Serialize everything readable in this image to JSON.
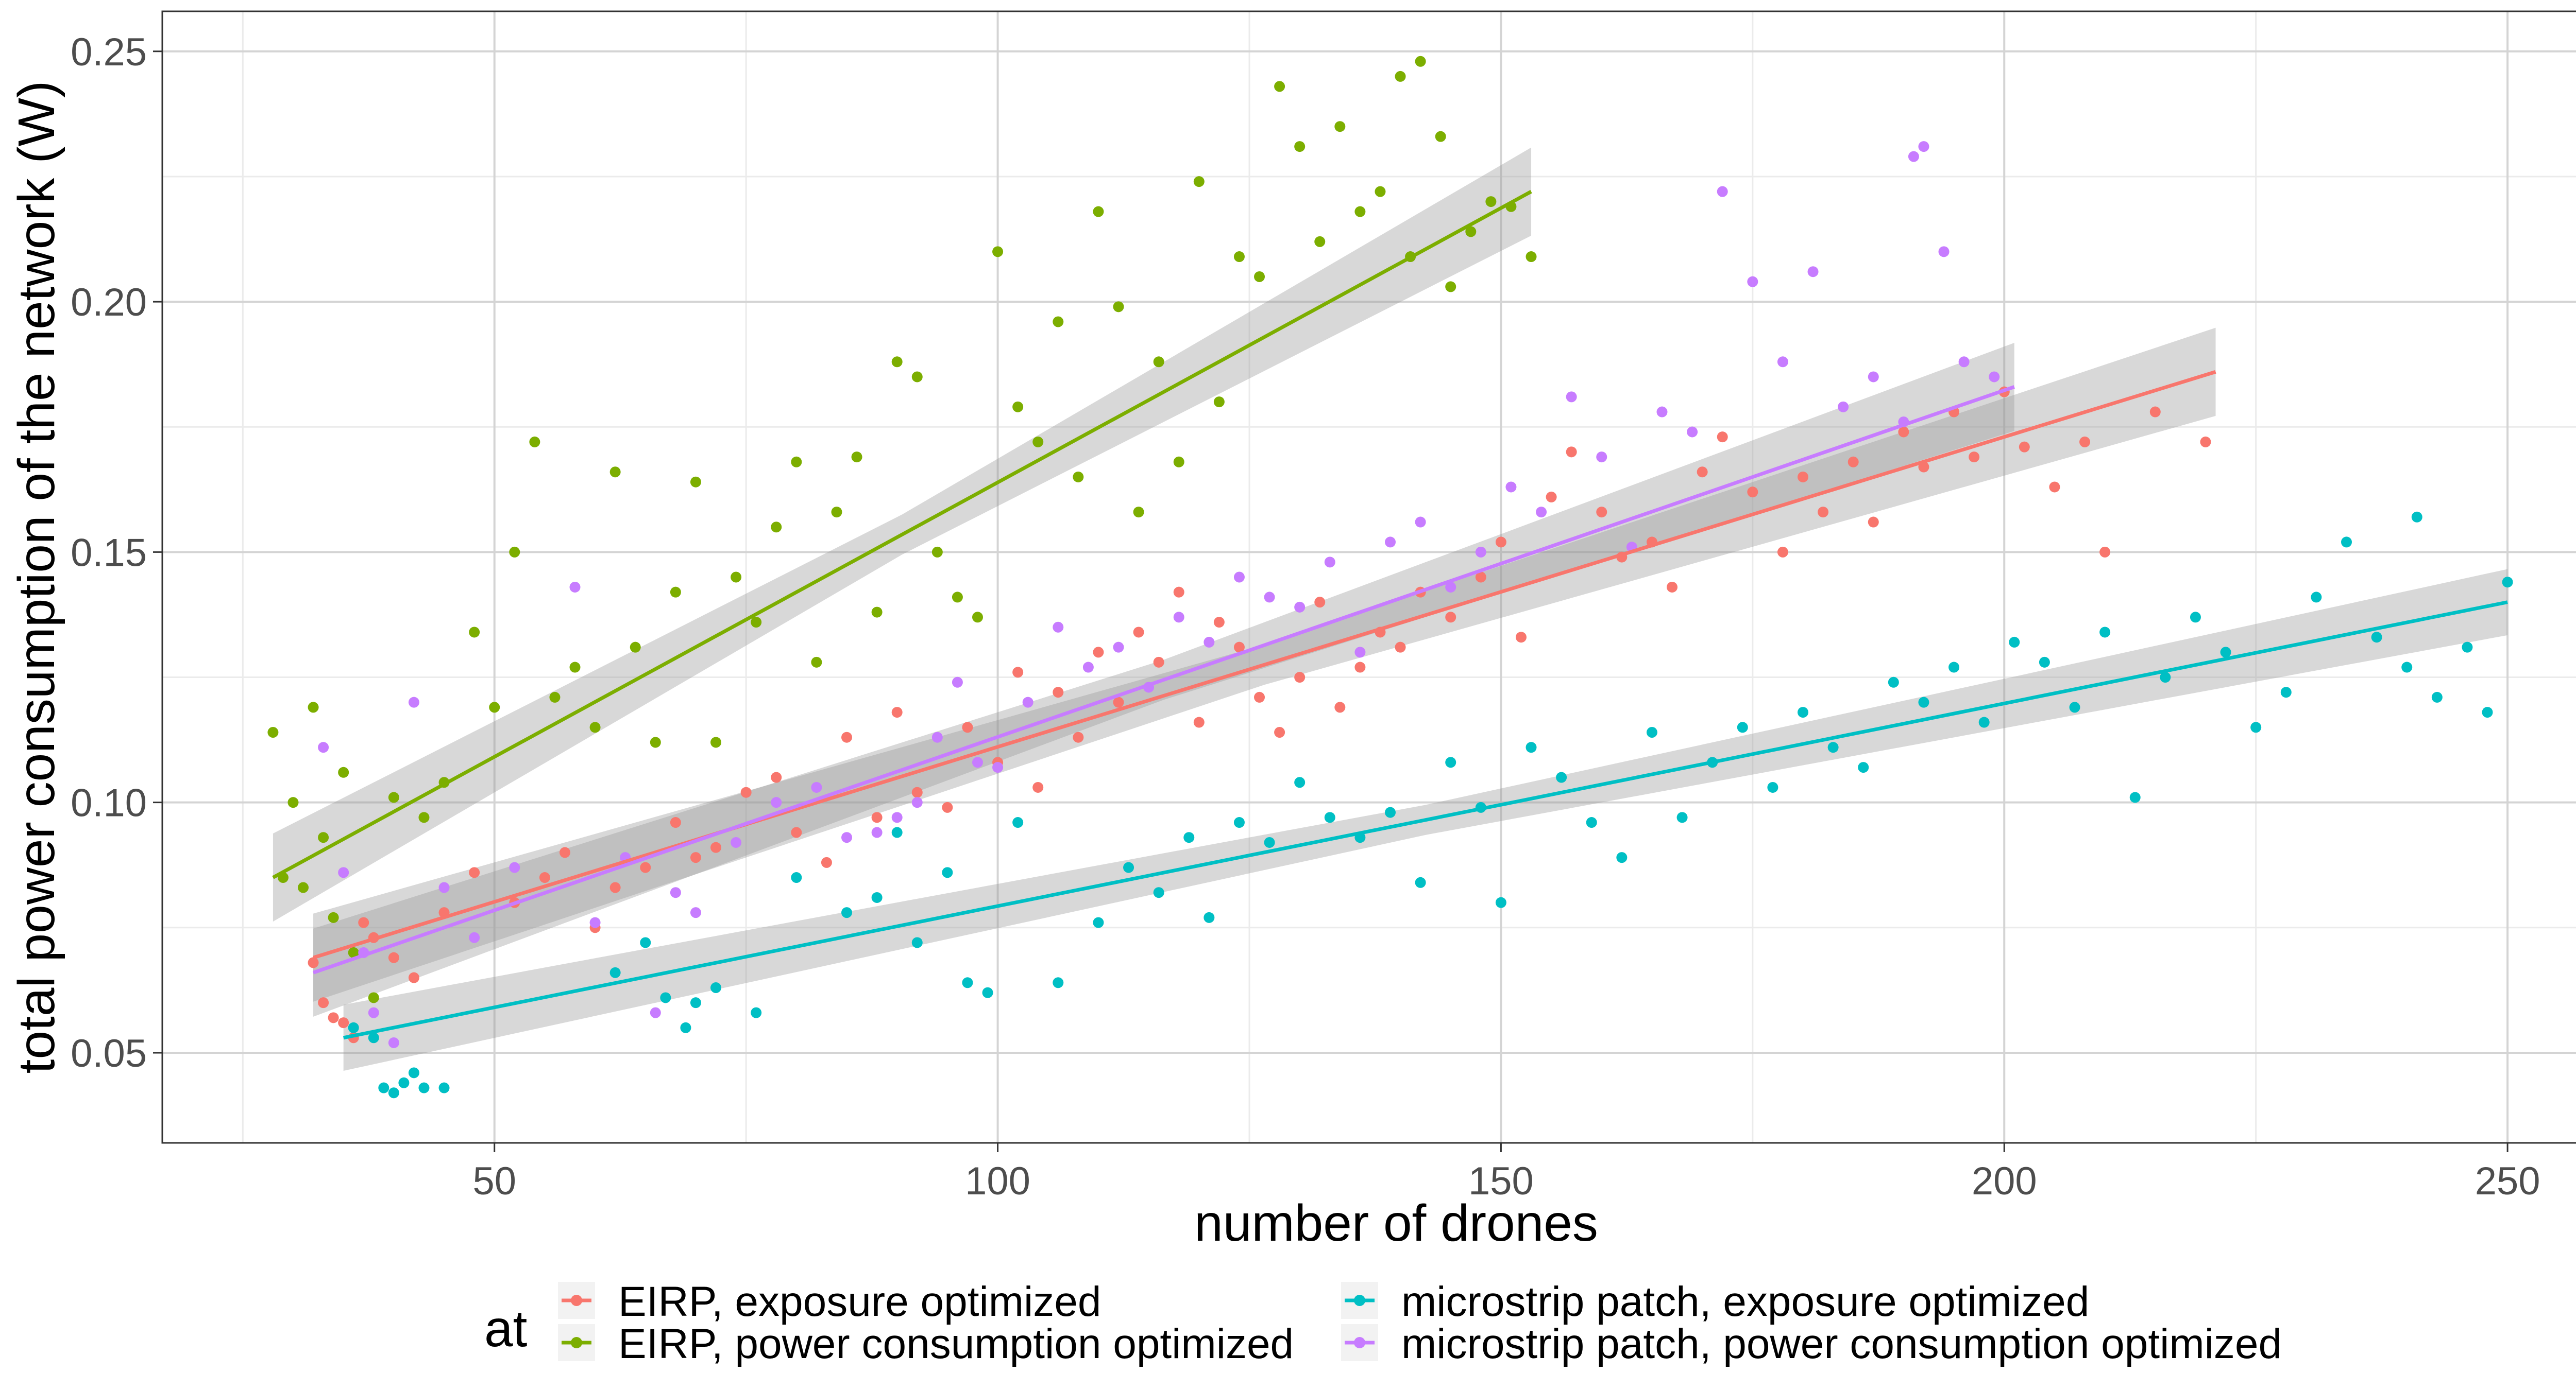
{
  "chart_data": {
    "type": "scatter",
    "xlabel": "number of drones",
    "ylabel": "total power consumption of the network (W)",
    "xlim": [
      17,
      261
    ],
    "ylim": [
      0.032,
      0.258
    ],
    "x_ticks": [
      50,
      100,
      150,
      200,
      250
    ],
    "y_ticks": [
      0.05,
      0.1,
      0.15,
      0.2,
      0.25
    ],
    "x_tick_labels": [
      "50",
      "100",
      "150",
      "200",
      "250"
    ],
    "y_tick_labels": [
      "0.05",
      "0.10",
      "0.15",
      "0.20",
      "0.25"
    ],
    "grid": true,
    "legend": {
      "title": "at",
      "placement": "bottom",
      "entries": [
        {
          "label": "EIRP, exposure optimized",
          "color": "#F8766D"
        },
        {
          "label": "EIRP, power consumption optimized",
          "color": "#7CAE00"
        },
        {
          "label": "microstrip patch, exposure optimized",
          "color": "#00BFC4"
        },
        {
          "label": "microstrip patch, power consumption optimized",
          "color": "#C77CFF"
        }
      ]
    },
    "series": [
      {
        "name": "EIRP, exposure optimized",
        "color": "#F8766D",
        "fit": {
          "x": [
            32,
            221
          ],
          "y": [
            0.069,
            0.186
          ],
          "band": 0.004
        },
        "points": [
          [
            32,
            0.068
          ],
          [
            33,
            0.06
          ],
          [
            34,
            0.057
          ],
          [
            35,
            0.056
          ],
          [
            36,
            0.053
          ],
          [
            37,
            0.076
          ],
          [
            38,
            0.073
          ],
          [
            40,
            0.069
          ],
          [
            42,
            0.065
          ],
          [
            45,
            0.078
          ],
          [
            48,
            0.086
          ],
          [
            52,
            0.08
          ],
          [
            55,
            0.085
          ],
          [
            57,
            0.09
          ],
          [
            60,
            0.075
          ],
          [
            62,
            0.083
          ],
          [
            65,
            0.087
          ],
          [
            68,
            0.096
          ],
          [
            70,
            0.089
          ],
          [
            72,
            0.091
          ],
          [
            75,
            0.102
          ],
          [
            78,
            0.105
          ],
          [
            80,
            0.094
          ],
          [
            83,
            0.088
          ],
          [
            85,
            0.113
          ],
          [
            88,
            0.097
          ],
          [
            90,
            0.118
          ],
          [
            92,
            0.102
          ],
          [
            95,
            0.099
          ],
          [
            97,
            0.115
          ],
          [
            100,
            0.108
          ],
          [
            102,
            0.126
          ],
          [
            104,
            0.103
          ],
          [
            106,
            0.122
          ],
          [
            108,
            0.113
          ],
          [
            110,
            0.13
          ],
          [
            112,
            0.12
          ],
          [
            114,
            0.134
          ],
          [
            116,
            0.128
          ],
          [
            118,
            0.142
          ],
          [
            120,
            0.116
          ],
          [
            122,
            0.136
          ],
          [
            124,
            0.131
          ],
          [
            126,
            0.121
          ],
          [
            128,
            0.114
          ],
          [
            130,
            0.125
          ],
          [
            132,
            0.14
          ],
          [
            134,
            0.119
          ],
          [
            136,
            0.127
          ],
          [
            138,
            0.134
          ],
          [
            140,
            0.131
          ],
          [
            142,
            0.142
          ],
          [
            145,
            0.137
          ],
          [
            148,
            0.145
          ],
          [
            150,
            0.152
          ],
          [
            152,
            0.133
          ],
          [
            155,
            0.161
          ],
          [
            157,
            0.17
          ],
          [
            160,
            0.158
          ],
          [
            162,
            0.149
          ],
          [
            165,
            0.152
          ],
          [
            167,
            0.143
          ],
          [
            170,
            0.166
          ],
          [
            172,
            0.173
          ],
          [
            175,
            0.162
          ],
          [
            178,
            0.15
          ],
          [
            180,
            0.165
          ],
          [
            182,
            0.158
          ],
          [
            185,
            0.168
          ],
          [
            187,
            0.156
          ],
          [
            190,
            0.174
          ],
          [
            192,
            0.167
          ],
          [
            195,
            0.178
          ],
          [
            197,
            0.169
          ],
          [
            200,
            0.182
          ],
          [
            202,
            0.171
          ],
          [
            205,
            0.163
          ],
          [
            208,
            0.172
          ],
          [
            210,
            0.15
          ],
          [
            215,
            0.178
          ],
          [
            220,
            0.172
          ]
        ]
      },
      {
        "name": "EIRP, power consumption optimized",
        "color": "#7CAE00",
        "fit": {
          "x": [
            28,
            153
          ],
          "y": [
            0.085,
            0.222
          ],
          "band": 0.004
        },
        "points": [
          [
            28,
            0.114
          ],
          [
            29,
            0.085
          ],
          [
            30,
            0.1
          ],
          [
            31,
            0.083
          ],
          [
            32,
            0.119
          ],
          [
            33,
            0.093
          ],
          [
            34,
            0.077
          ],
          [
            35,
            0.106
          ],
          [
            36,
            0.07
          ],
          [
            38,
            0.061
          ],
          [
            40,
            0.101
          ],
          [
            43,
            0.097
          ],
          [
            45,
            0.104
          ],
          [
            48,
            0.134
          ],
          [
            50,
            0.119
          ],
          [
            52,
            0.15
          ],
          [
            54,
            0.172
          ],
          [
            56,
            0.121
          ],
          [
            58,
            0.127
          ],
          [
            60,
            0.115
          ],
          [
            62,
            0.166
          ],
          [
            64,
            0.131
          ],
          [
            66,
            0.112
          ],
          [
            68,
            0.142
          ],
          [
            70,
            0.164
          ],
          [
            72,
            0.112
          ],
          [
            74,
            0.145
          ],
          [
            76,
            0.136
          ],
          [
            78,
            0.155
          ],
          [
            80,
            0.168
          ],
          [
            82,
            0.128
          ],
          [
            84,
            0.158
          ],
          [
            86,
            0.169
          ],
          [
            88,
            0.138
          ],
          [
            90,
            0.188
          ],
          [
            92,
            0.185
          ],
          [
            94,
            0.15
          ],
          [
            96,
            0.141
          ],
          [
            98,
            0.137
          ],
          [
            100,
            0.21
          ],
          [
            102,
            0.179
          ],
          [
            104,
            0.172
          ],
          [
            106,
            0.196
          ],
          [
            108,
            0.165
          ],
          [
            110,
            0.218
          ],
          [
            112,
            0.199
          ],
          [
            114,
            0.158
          ],
          [
            116,
            0.188
          ],
          [
            118,
            0.168
          ],
          [
            120,
            0.224
          ],
          [
            122,
            0.18
          ],
          [
            124,
            0.209
          ],
          [
            126,
            0.205
          ],
          [
            128,
            0.243
          ],
          [
            130,
            0.231
          ],
          [
            132,
            0.212
          ],
          [
            134,
            0.235
          ],
          [
            136,
            0.218
          ],
          [
            138,
            0.222
          ],
          [
            140,
            0.245
          ],
          [
            141,
            0.209
          ],
          [
            142,
            0.248
          ],
          [
            144,
            0.233
          ],
          [
            145,
            0.203
          ],
          [
            147,
            0.214
          ],
          [
            149,
            0.22
          ],
          [
            151,
            0.219
          ],
          [
            153,
            0.209
          ]
        ]
      },
      {
        "name": "microstrip patch, exposure optimized",
        "color": "#00BFC4",
        "fit": {
          "x": [
            35,
            250
          ],
          "y": [
            0.053,
            0.14
          ],
          "band": 0.003
        },
        "points": [
          [
            36,
            0.055
          ],
          [
            38,
            0.053
          ],
          [
            39,
            0.043
          ],
          [
            40,
            0.042
          ],
          [
            41,
            0.044
          ],
          [
            42,
            0.046
          ],
          [
            43,
            0.043
          ],
          [
            45,
            0.043
          ],
          [
            62,
            0.066
          ],
          [
            65,
            0.072
          ],
          [
            67,
            0.061
          ],
          [
            69,
            0.055
          ],
          [
            70,
            0.06
          ],
          [
            72,
            0.063
          ],
          [
            76,
            0.058
          ],
          [
            80,
            0.085
          ],
          [
            85,
            0.078
          ],
          [
            88,
            0.081
          ],
          [
            90,
            0.094
          ],
          [
            92,
            0.072
          ],
          [
            95,
            0.086
          ],
          [
            97,
            0.064
          ],
          [
            99,
            0.062
          ],
          [
            102,
            0.096
          ],
          [
            106,
            0.064
          ],
          [
            110,
            0.076
          ],
          [
            113,
            0.087
          ],
          [
            116,
            0.082
          ],
          [
            119,
            0.093
          ],
          [
            121,
            0.077
          ],
          [
            124,
            0.096
          ],
          [
            127,
            0.092
          ],
          [
            130,
            0.104
          ],
          [
            133,
            0.097
          ],
          [
            136,
            0.093
          ],
          [
            139,
            0.098
          ],
          [
            142,
            0.084
          ],
          [
            145,
            0.108
          ],
          [
            148,
            0.099
          ],
          [
            150,
            0.08
          ],
          [
            153,
            0.111
          ],
          [
            156,
            0.105
          ],
          [
            159,
            0.096
          ],
          [
            162,
            0.089
          ],
          [
            165,
            0.114
          ],
          [
            168,
            0.097
          ],
          [
            171,
            0.108
          ],
          [
            174,
            0.115
          ],
          [
            177,
            0.103
          ],
          [
            180,
            0.118
          ],
          [
            183,
            0.111
          ],
          [
            186,
            0.107
          ],
          [
            189,
            0.124
          ],
          [
            192,
            0.12
          ],
          [
            195,
            0.127
          ],
          [
            198,
            0.116
          ],
          [
            201,
            0.132
          ],
          [
            204,
            0.128
          ],
          [
            207,
            0.119
          ],
          [
            210,
            0.134
          ],
          [
            213,
            0.101
          ],
          [
            216,
            0.125
          ],
          [
            219,
            0.137
          ],
          [
            222,
            0.13
          ],
          [
            225,
            0.115
          ],
          [
            228,
            0.122
          ],
          [
            231,
            0.141
          ],
          [
            234,
            0.152
          ],
          [
            237,
            0.133
          ],
          [
            240,
            0.127
          ],
          [
            241,
            0.157
          ],
          [
            243,
            0.121
          ],
          [
            246,
            0.131
          ],
          [
            248,
            0.118
          ],
          [
            250,
            0.144
          ]
        ]
      },
      {
        "name": "microstrip patch, power consumption optimized",
        "color": "#C77CFF",
        "fit": {
          "x": [
            32,
            201
          ],
          "y": [
            0.066,
            0.183
          ],
          "band": 0.004
        },
        "points": [
          [
            33,
            0.111
          ],
          [
            35,
            0.086
          ],
          [
            37,
            0.07
          ],
          [
            38,
            0.058
          ],
          [
            40,
            0.052
          ],
          [
            42,
            0.12
          ],
          [
            45,
            0.083
          ],
          [
            48,
            0.073
          ],
          [
            52,
            0.087
          ],
          [
            58,
            0.143
          ],
          [
            60,
            0.076
          ],
          [
            63,
            0.089
          ],
          [
            66,
            0.058
          ],
          [
            68,
            0.082
          ],
          [
            70,
            0.078
          ],
          [
            74,
            0.092
          ],
          [
            78,
            0.1
          ],
          [
            82,
            0.103
          ],
          [
            85,
            0.093
          ],
          [
            88,
            0.094
          ],
          [
            90,
            0.097
          ],
          [
            92,
            0.1
          ],
          [
            94,
            0.113
          ],
          [
            96,
            0.124
          ],
          [
            98,
            0.108
          ],
          [
            100,
            0.107
          ],
          [
            103,
            0.12
          ],
          [
            106,
            0.135
          ],
          [
            109,
            0.127
          ],
          [
            112,
            0.131
          ],
          [
            115,
            0.123
          ],
          [
            118,
            0.137
          ],
          [
            121,
            0.132
          ],
          [
            124,
            0.145
          ],
          [
            127,
            0.141
          ],
          [
            130,
            0.139
          ],
          [
            133,
            0.148
          ],
          [
            136,
            0.13
          ],
          [
            139,
            0.152
          ],
          [
            142,
            0.156
          ],
          [
            145,
            0.143
          ],
          [
            148,
            0.15
          ],
          [
            151,
            0.163
          ],
          [
            154,
            0.158
          ],
          [
            157,
            0.181
          ],
          [
            160,
            0.169
          ],
          [
            163,
            0.151
          ],
          [
            166,
            0.178
          ],
          [
            169,
            0.174
          ],
          [
            172,
            0.222
          ],
          [
            175,
            0.204
          ],
          [
            178,
            0.188
          ],
          [
            181,
            0.206
          ],
          [
            184,
            0.179
          ],
          [
            187,
            0.185
          ],
          [
            190,
            0.176
          ],
          [
            191,
            0.229
          ],
          [
            192,
            0.231
          ],
          [
            194,
            0.21
          ],
          [
            196,
            0.188
          ],
          [
            199,
            0.185
          ]
        ]
      }
    ]
  }
}
